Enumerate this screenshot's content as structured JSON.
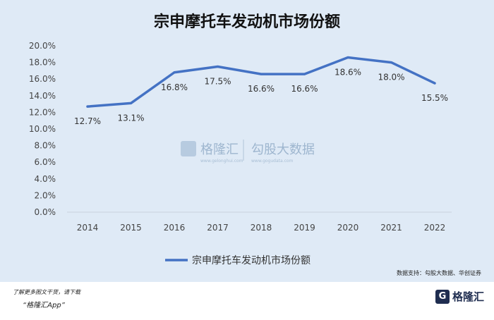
{
  "chart_data": {
    "type": "line",
    "title": "宗申摩托车发动机市场份额",
    "x": [
      "2014",
      "2015",
      "2016",
      "2017",
      "2018",
      "2019",
      "2020",
      "2021",
      "2022"
    ],
    "series": [
      {
        "name": "宗申摩托车发动机市场份额",
        "values": [
          12.7,
          13.1,
          16.8,
          17.5,
          16.6,
          16.6,
          18.6,
          18.0,
          15.5
        ],
        "labels": [
          "12.7%",
          "13.1%",
          "16.8%",
          "17.5%",
          "16.6%",
          "16.6%",
          "18.6%",
          "18.0%",
          "15.5%"
        ],
        "color": "#4472c4"
      }
    ],
    "ylim": [
      0,
      20
    ],
    "yticks": [
      0,
      2,
      4,
      6,
      8,
      10,
      12,
      14,
      16,
      18,
      20
    ],
    "ytick_labels": [
      "0.0%",
      "2.0%",
      "4.0%",
      "6.0%",
      "8.0%",
      "10.0%",
      "12.0%",
      "14.0%",
      "16.0%",
      "18.0%",
      "20.0%"
    ],
    "grid": false,
    "legend_position": "bottom"
  },
  "watermark": {
    "brand": "格隆汇",
    "brand_sub": "www.gelonghui.com",
    "partner": "勾股大数据",
    "partner_sub": "www.gogudata.com"
  },
  "source": "数据支持：勾股大数据、华创证券",
  "footer": {
    "line1": "了解更多图文干货，请下载",
    "line2": "“格隆汇App”",
    "logo_icon": "G",
    "logo_text": "格隆汇"
  },
  "colors": {
    "background": "#dfeaf6",
    "line": "#4472c4"
  }
}
